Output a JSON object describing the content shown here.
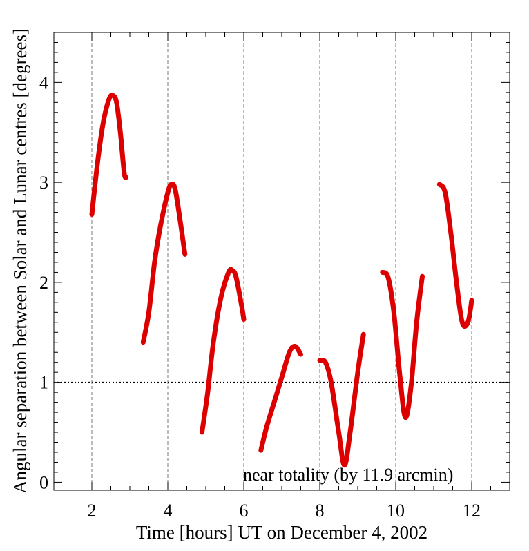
{
  "chart_data": {
    "type": "line",
    "title": "",
    "xlabel": "Time [hours] UT on December 4, 2002",
    "ylabel": "Angular separation between Solar and Lunar centres [degrees]",
    "xlim": [
      1,
      13
    ],
    "ylim": [
      -0.08,
      4.5
    ],
    "x_ticks": [
      2,
      4,
      6,
      8,
      10,
      12
    ],
    "y_ticks": [
      0,
      1,
      2,
      3,
      4
    ],
    "x_tick_labels": [
      "2",
      "4",
      "6",
      "8",
      "10",
      "12"
    ],
    "y_tick_labels": [
      "0",
      "1",
      "2",
      "3",
      "4"
    ],
    "vertical_gridlines_at": [
      2,
      4,
      6,
      8,
      10,
      12
    ],
    "reference_line": {
      "y": 1,
      "style": "dotted"
    },
    "annotation": "near totality (by  11.9 arcmin)",
    "line_color": "#dd0000",
    "series": [
      {
        "name": "segment-1",
        "points": [
          [
            2.0,
            2.68
          ],
          [
            2.15,
            3.2
          ],
          [
            2.3,
            3.6
          ],
          [
            2.45,
            3.83
          ],
          [
            2.55,
            3.87
          ],
          [
            2.65,
            3.8
          ],
          [
            2.75,
            3.5
          ],
          [
            2.85,
            3.1
          ],
          [
            2.9,
            3.05
          ]
        ]
      },
      {
        "name": "segment-2",
        "points": [
          [
            3.35,
            1.4
          ],
          [
            3.5,
            1.7
          ],
          [
            3.65,
            2.2
          ],
          [
            3.8,
            2.55
          ],
          [
            4.0,
            2.9
          ],
          [
            4.1,
            2.98
          ],
          [
            4.2,
            2.92
          ],
          [
            4.35,
            2.55
          ],
          [
            4.45,
            2.28
          ]
        ]
      },
      {
        "name": "segment-3",
        "points": [
          [
            4.9,
            0.5
          ],
          [
            5.05,
            0.9
          ],
          [
            5.2,
            1.4
          ],
          [
            5.4,
            1.85
          ],
          [
            5.6,
            2.1
          ],
          [
            5.7,
            2.12
          ],
          [
            5.8,
            2.05
          ],
          [
            5.95,
            1.75
          ],
          [
            6.0,
            1.63
          ]
        ]
      },
      {
        "name": "segment-4",
        "points": [
          [
            6.45,
            0.32
          ],
          [
            6.6,
            0.55
          ],
          [
            6.8,
            0.8
          ],
          [
            7.0,
            1.05
          ],
          [
            7.2,
            1.3
          ],
          [
            7.35,
            1.36
          ],
          [
            7.5,
            1.28
          ]
        ]
      },
      {
        "name": "segment-5",
        "points": [
          [
            8.0,
            1.22
          ],
          [
            8.15,
            1.2
          ],
          [
            8.3,
            1.0
          ],
          [
            8.5,
            0.5
          ],
          [
            8.65,
            0.17
          ],
          [
            8.8,
            0.5
          ],
          [
            9.0,
            1.1
          ],
          [
            9.15,
            1.48
          ]
        ]
      },
      {
        "name": "segment-6",
        "points": [
          [
            9.65,
            2.1
          ],
          [
            9.8,
            2.05
          ],
          [
            9.95,
            1.7
          ],
          [
            10.1,
            1.1
          ],
          [
            10.25,
            0.65
          ],
          [
            10.4,
            0.95
          ],
          [
            10.55,
            1.6
          ],
          [
            10.7,
            2.06
          ]
        ]
      },
      {
        "name": "segment-7",
        "points": [
          [
            11.15,
            2.98
          ],
          [
            11.3,
            2.9
          ],
          [
            11.45,
            2.5
          ],
          [
            11.6,
            2.0
          ],
          [
            11.75,
            1.6
          ],
          [
            11.9,
            1.6
          ],
          [
            12.0,
            1.82
          ]
        ]
      }
    ]
  }
}
